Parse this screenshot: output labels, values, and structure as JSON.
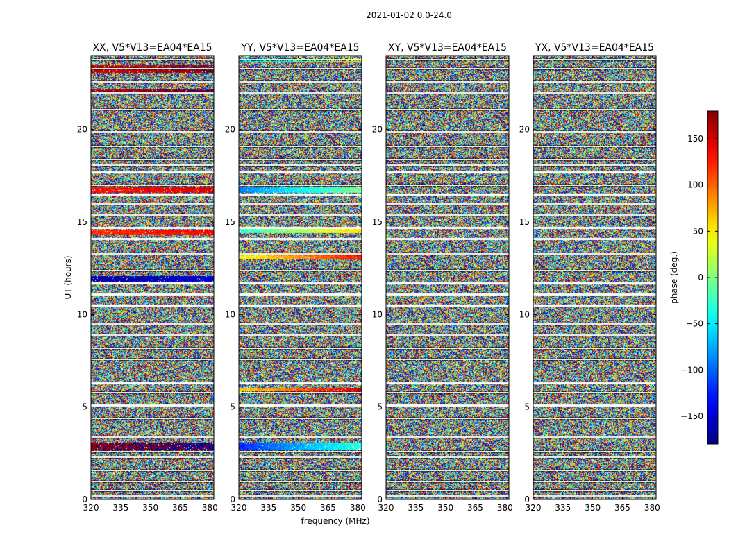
{
  "chart_data": {
    "type": "heatmap",
    "suptitle": "2021-01-02 0.0-24.0",
    "xlabel": "frequency (MHz)",
    "ylabel": "UT (hours)",
    "xlim": [
      320,
      382
    ],
    "ylim": [
      0,
      24
    ],
    "xticks": [
      320,
      335,
      350,
      365,
      380
    ],
    "yticks": [
      0,
      5,
      10,
      15,
      20
    ],
    "panels": [
      {
        "title": "XX, V5*V13=EA04*EA15",
        "pol": "XX"
      },
      {
        "title": "YY, V5*V13=EA04*EA15",
        "pol": "YY"
      },
      {
        "title": "XY, V5*V13=EA04*EA15",
        "pol": "XY"
      },
      {
        "title": "YX, V5*V13=EA04*EA15",
        "pol": "YX"
      }
    ],
    "colorbar": {
      "label": "phase (deg.)",
      "range": [
        -180,
        180
      ],
      "ticks": [
        150,
        100,
        50,
        0,
        -50,
        -100,
        -150
      ],
      "colormap": "jet"
    },
    "flagged_hours": [
      0.2,
      0.5,
      1.0,
      1.6,
      2.3,
      2.6,
      3.4,
      4.4,
      5.1,
      5.8,
      6.3,
      7.6,
      8.2,
      8.9,
      9.5,
      10.5,
      11.1,
      11.7,
      12.4,
      13.3,
      14.1,
      14.7,
      15.4,
      16.0,
      16.5,
      17.0,
      17.7,
      18.1,
      18.4,
      19.1,
      19.9,
      21.1,
      22.0,
      22.6,
      23.3,
      23.8
    ],
    "coherent_bands": {
      "XX": [
        {
          "from": 2.7,
          "to": 3.1,
          "phase": 170
        },
        {
          "from": 16.6,
          "to": 16.9,
          "phase": 130
        },
        {
          "from": 23.1,
          "to": 23.5,
          "phase": 150
        },
        {
          "from": 22.0,
          "to": 22.2,
          "phase": 160
        },
        {
          "from": 14.3,
          "to": 14.6,
          "phase": 120
        },
        {
          "from": 11.8,
          "to": 12.1,
          "phase": -170
        }
      ],
      "YY": [
        {
          "from": 2.7,
          "to": 3.1,
          "phase": -120
        },
        {
          "from": 16.6,
          "to": 16.9,
          "phase": -90
        },
        {
          "from": 23.7,
          "to": 23.9,
          "phase": -60
        },
        {
          "from": 14.4,
          "to": 14.7,
          "phase": -30
        },
        {
          "from": 13.0,
          "to": 13.3,
          "phase": 40
        },
        {
          "from": 5.8,
          "to": 6.0,
          "phase": 60
        }
      ],
      "XY": [],
      "YX": []
    }
  }
}
